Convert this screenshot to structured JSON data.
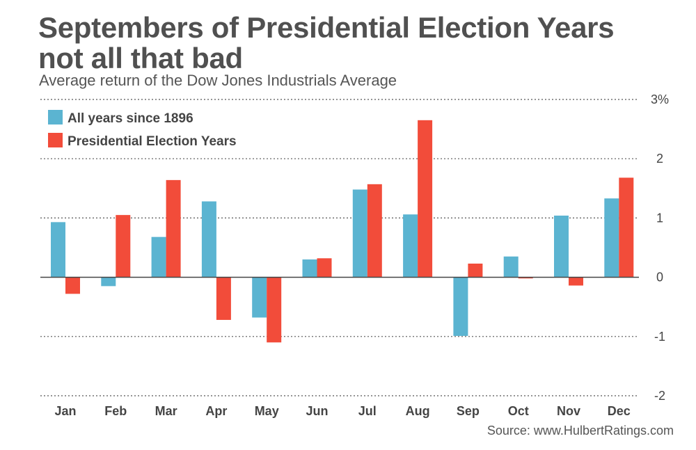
{
  "title_line1": "Septembers of Presidential Election Years",
  "title_line2": "not all that bad",
  "subtitle": "Average return of the Dow Jones Industrials Average",
  "source": "Source: www.HulbertRatings.com",
  "colors": {
    "all_years": "#5bb4d1",
    "election": "#f24c3a",
    "grid": "#555555",
    "axis": "#444444"
  },
  "chart_data": {
    "type": "bar",
    "categories": [
      "Jan",
      "Feb",
      "Mar",
      "Apr",
      "May",
      "Jun",
      "Jul",
      "Aug",
      "Sep",
      "Oct",
      "Nov",
      "Dec"
    ],
    "series": [
      {
        "name": "All years since 1896",
        "values": [
          0.93,
          -0.15,
          0.68,
          1.28,
          -0.68,
          0.3,
          1.48,
          1.06,
          -0.99,
          0.35,
          1.04,
          1.33
        ]
      },
      {
        "name": "Presidential Election Years",
        "values": [
          -0.28,
          1.05,
          1.64,
          -0.72,
          -1.1,
          0.32,
          1.57,
          2.65,
          0.23,
          -0.02,
          -0.14,
          1.68
        ]
      }
    ],
    "ylim": [
      -2,
      3
    ],
    "yticks": [
      {
        "value": 3,
        "label": "3%"
      },
      {
        "value": 2,
        "label": "2"
      },
      {
        "value": 1,
        "label": "1"
      },
      {
        "value": 0,
        "label": "0"
      },
      {
        "value": -1,
        "label": "-1"
      },
      {
        "value": -2,
        "label": "-2"
      }
    ],
    "grid": true,
    "legend_position": "top-left"
  }
}
